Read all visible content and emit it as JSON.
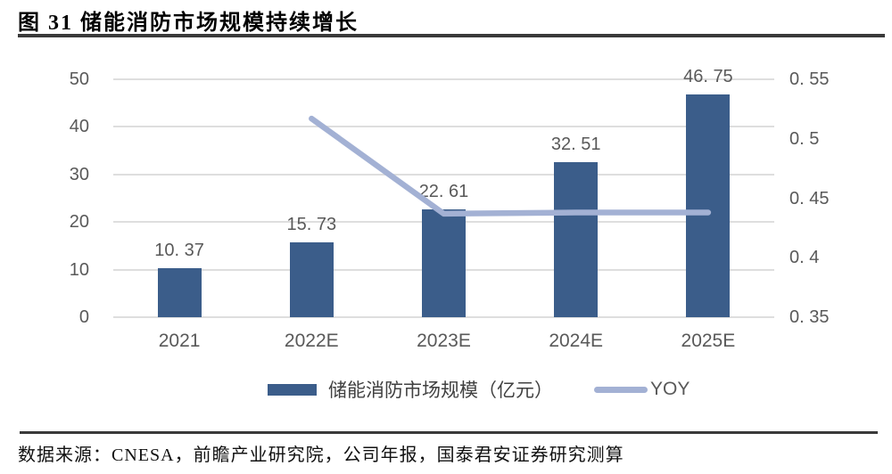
{
  "figure": {
    "title": "图 31 储能消防市场规模持续增长",
    "source": "数据来源：CNESA，前瞻产业研究院，公司年报，国泰君安证券研究测算"
  },
  "legend": {
    "bar_label": "储能消防市场规模（亿元）",
    "line_label": "YOY"
  },
  "colors": {
    "bar": "#3b5d8a",
    "line": "#a3b1d4",
    "grid": "#dedede",
    "tick_text": "#595959",
    "rule": "#3a3a3a"
  },
  "chart_data": {
    "type": "bar+line",
    "title": "储能消防市场规模持续增长",
    "categories": [
      "2021",
      "2022E",
      "2023E",
      "2024E",
      "2025E"
    ],
    "series": [
      {
        "name": "储能消防市场规模（亿元）",
        "type": "bar",
        "axis": "left",
        "values": [
          10.37,
          15.73,
          22.61,
          32.51,
          46.75
        ],
        "labels": [
          "10. 37",
          "15. 73",
          "22. 61",
          "32. 51",
          "46. 75"
        ]
      },
      {
        "name": "YOY",
        "type": "line",
        "axis": "right",
        "x": [
          "2022E",
          "2023E",
          "2024E",
          "2025E"
        ],
        "values": [
          0.517,
          0.437,
          0.438,
          0.438
        ]
      }
    ],
    "left_axis": {
      "min": 0,
      "max": 50,
      "ticks": [
        0,
        10,
        20,
        30,
        40,
        50
      ],
      "tick_labels": [
        "0",
        "10",
        "20",
        "30",
        "40",
        "50"
      ]
    },
    "right_axis": {
      "min": 0.35,
      "max": 0.55,
      "ticks": [
        0.35,
        0.4,
        0.45,
        0.5,
        0.55
      ],
      "tick_labels": [
        "0. 35",
        "0. 4",
        "0. 45",
        "0. 5",
        "0. 55"
      ]
    },
    "grid": true,
    "legend_position": "bottom"
  }
}
